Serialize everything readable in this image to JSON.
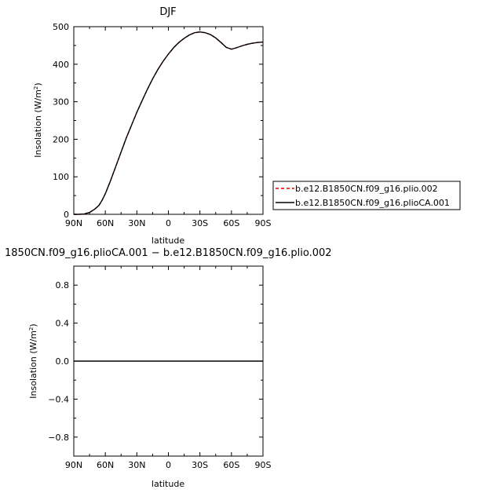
{
  "chart_data": [
    {
      "type": "line",
      "title": "DJF",
      "xlabel": "latitude",
      "ylabel": "Insolation (W/m",
      "ylabel_sup": "2",
      "ylabel_close": ")",
      "xlim": [
        90,
        -90
      ],
      "ylim": [
        0,
        500
      ],
      "x_ticks": [
        90,
        60,
        30,
        0,
        -30,
        -60,
        -90
      ],
      "x_tick_labels": [
        "90N",
        "60N",
        "30N",
        "0",
        "30S",
        "60S",
        "90S"
      ],
      "y_ticks": [
        0,
        100,
        200,
        300,
        400,
        500
      ],
      "y_tick_labels": [
        "0",
        "100",
        "200",
        "300",
        "400",
        "500"
      ],
      "x": [
        90,
        85,
        80,
        75,
        70,
        66,
        63,
        60,
        55,
        50,
        45,
        40,
        35,
        30,
        25,
        20,
        15,
        10,
        5,
        0,
        -5,
        -10,
        -15,
        -20,
        -25,
        -30,
        -35,
        -40,
        -45,
        -50,
        -55,
        -60,
        -65,
        -70,
        -75,
        -80,
        -85,
        -90
      ],
      "series": [
        {
          "name": "b.e12.B1850CN.f09_g16.plio.002",
          "color": "#e00000",
          "dash": "dashed",
          "values": [
            0,
            0,
            1,
            5,
            14,
            24,
            38,
            55,
            90,
            128,
            166,
            204,
            238,
            272,
            303,
            333,
            361,
            386,
            408,
            427,
            444,
            458,
            469,
            478,
            484,
            486,
            484,
            479,
            470,
            458,
            445,
            440,
            444,
            449,
            453,
            456,
            458,
            459
          ]
        },
        {
          "name": "b.e12.B1850CN.f09_g16.plioCA.001",
          "color": "#000000",
          "dash": "solid",
          "values": [
            0,
            0,
            1,
            5,
            14,
            24,
            38,
            55,
            90,
            128,
            166,
            204,
            238,
            272,
            303,
            333,
            361,
            386,
            408,
            427,
            444,
            458,
            469,
            478,
            484,
            486,
            484,
            479,
            470,
            458,
            445,
            440,
            444,
            449,
            453,
            456,
            458,
            459
          ]
        }
      ],
      "legend": "right"
    },
    {
      "type": "line",
      "title": "1850CN.f09_g16.plioCA.001 − b.e12.B1850CN.f09_g16.plio.002",
      "xlabel": "latitude",
      "ylabel": "Insolation (W/m",
      "ylabel_sup": "2",
      "ylabel_close": ")",
      "xlim": [
        90,
        -90
      ],
      "ylim": [
        -1,
        1
      ],
      "x_ticks": [
        90,
        60,
        30,
        0,
        -30,
        -60,
        -90
      ],
      "x_tick_labels": [
        "90N",
        "60N",
        "30N",
        "0",
        "30S",
        "60S",
        "90S"
      ],
      "y_ticks": [
        -0.8,
        -0.4,
        0,
        0.4,
        0.8
      ],
      "y_tick_labels": [
        "−0.8",
        "−0.4",
        "0.0",
        "0.4",
        "0.8"
      ],
      "x": [
        90,
        -90
      ],
      "series": [
        {
          "color": "#000000",
          "dash": "solid",
          "values": [
            0,
            0
          ]
        }
      ]
    }
  ]
}
